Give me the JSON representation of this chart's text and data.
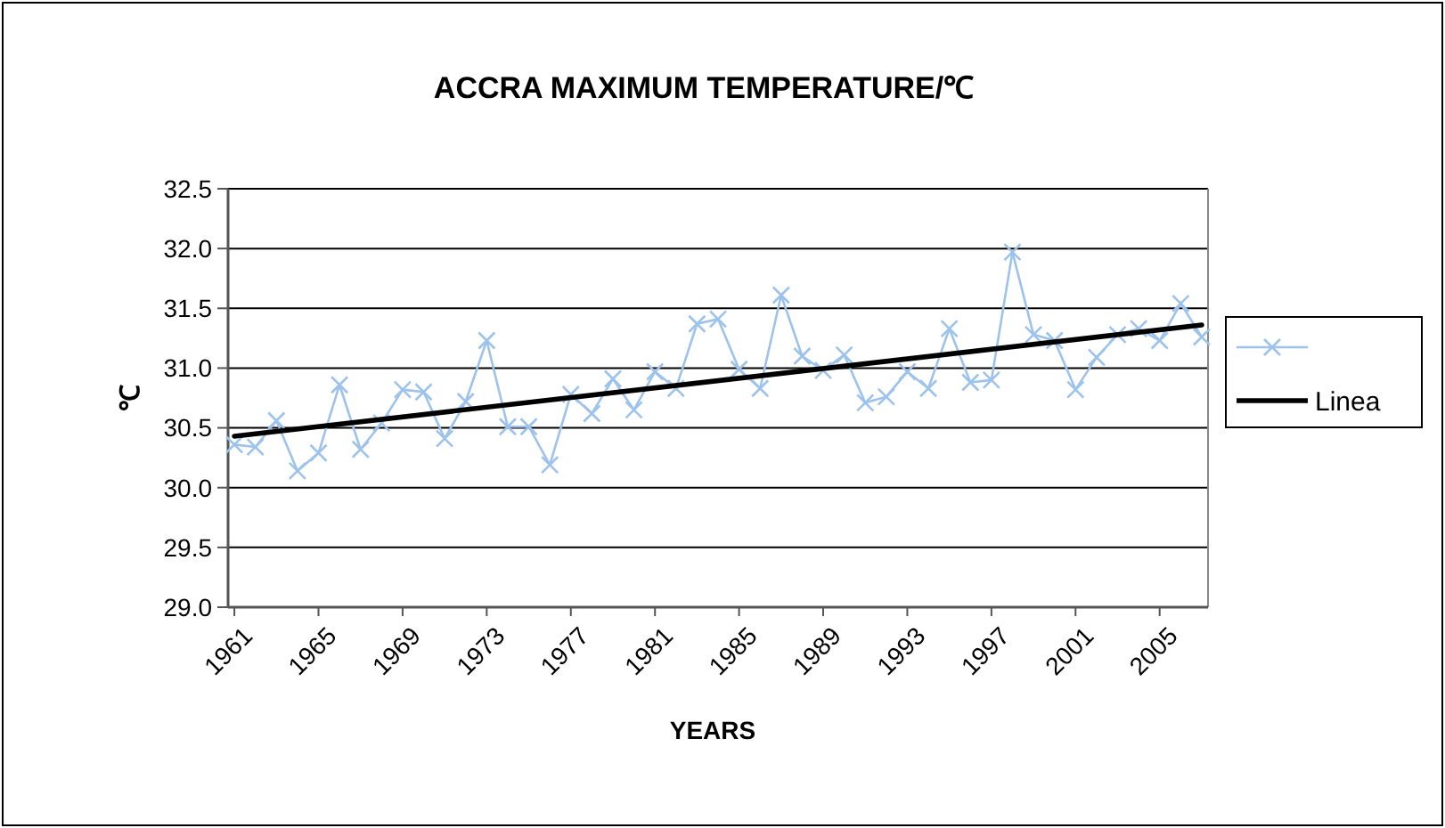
{
  "chart_data": {
    "type": "line",
    "title": "ACCRA MAXIMUM TEMPERATURE/℃",
    "xlabel": "YEARS",
    "ylabel": "℃",
    "x": [
      1961,
      1962,
      1963,
      1964,
      1965,
      1966,
      1967,
      1968,
      1969,
      1970,
      1971,
      1972,
      1973,
      1974,
      1975,
      1976,
      1977,
      1978,
      1979,
      1980,
      1981,
      1982,
      1983,
      1984,
      1985,
      1986,
      1987,
      1988,
      1989,
      1990,
      1991,
      1992,
      1993,
      1994,
      1995,
      1996,
      1997,
      1998,
      1999,
      2000,
      2001,
      2002,
      2003,
      2004,
      2005,
      2006,
      2007
    ],
    "xlim": [
      1960.7,
      2007.3
    ],
    "xticks": [
      1961,
      1965,
      1969,
      1973,
      1977,
      1981,
      1985,
      1989,
      1993,
      1997,
      2001,
      2005
    ],
    "ylim": [
      29.0,
      32.5
    ],
    "yticks": [
      {
        "value": 29.0,
        "label": "29.0"
      },
      {
        "value": 29.5,
        "label": "29.5"
      },
      {
        "value": 30.0,
        "label": "30.0"
      },
      {
        "value": 30.5,
        "label": "30.5"
      },
      {
        "value": 31.0,
        "label": "31.0"
      },
      {
        "value": 31.5,
        "label": "31.5"
      },
      {
        "value": 32.0,
        "label": "32.0"
      },
      {
        "value": 32.5,
        "label": "32.5"
      }
    ],
    "grid": "y",
    "legend": "right",
    "series": [
      {
        "color": "#9dc3ec",
        "marker": "cross",
        "values": [
          30.36,
          30.34,
          30.56,
          30.14,
          30.29,
          30.86,
          30.32,
          30.54,
          30.82,
          30.8,
          30.41,
          30.72,
          31.23,
          30.51,
          30.51,
          30.19,
          30.78,
          30.62,
          30.91,
          30.65,
          30.97,
          30.83,
          31.37,
          31.41,
          30.99,
          30.83,
          31.61,
          31.1,
          30.98,
          31.11,
          30.71,
          30.76,
          30.97,
          30.83,
          31.33,
          30.88,
          30.9,
          31.97,
          31.28,
          31.23,
          30.82,
          31.09,
          31.28,
          31.33,
          31.23,
          31.54,
          31.26
        ]
      },
      {
        "name": "Linea",
        "color": "#000000",
        "marker": "none",
        "x": [
          1961,
          2007
        ],
        "values": [
          30.43,
          31.36
        ]
      }
    ]
  }
}
